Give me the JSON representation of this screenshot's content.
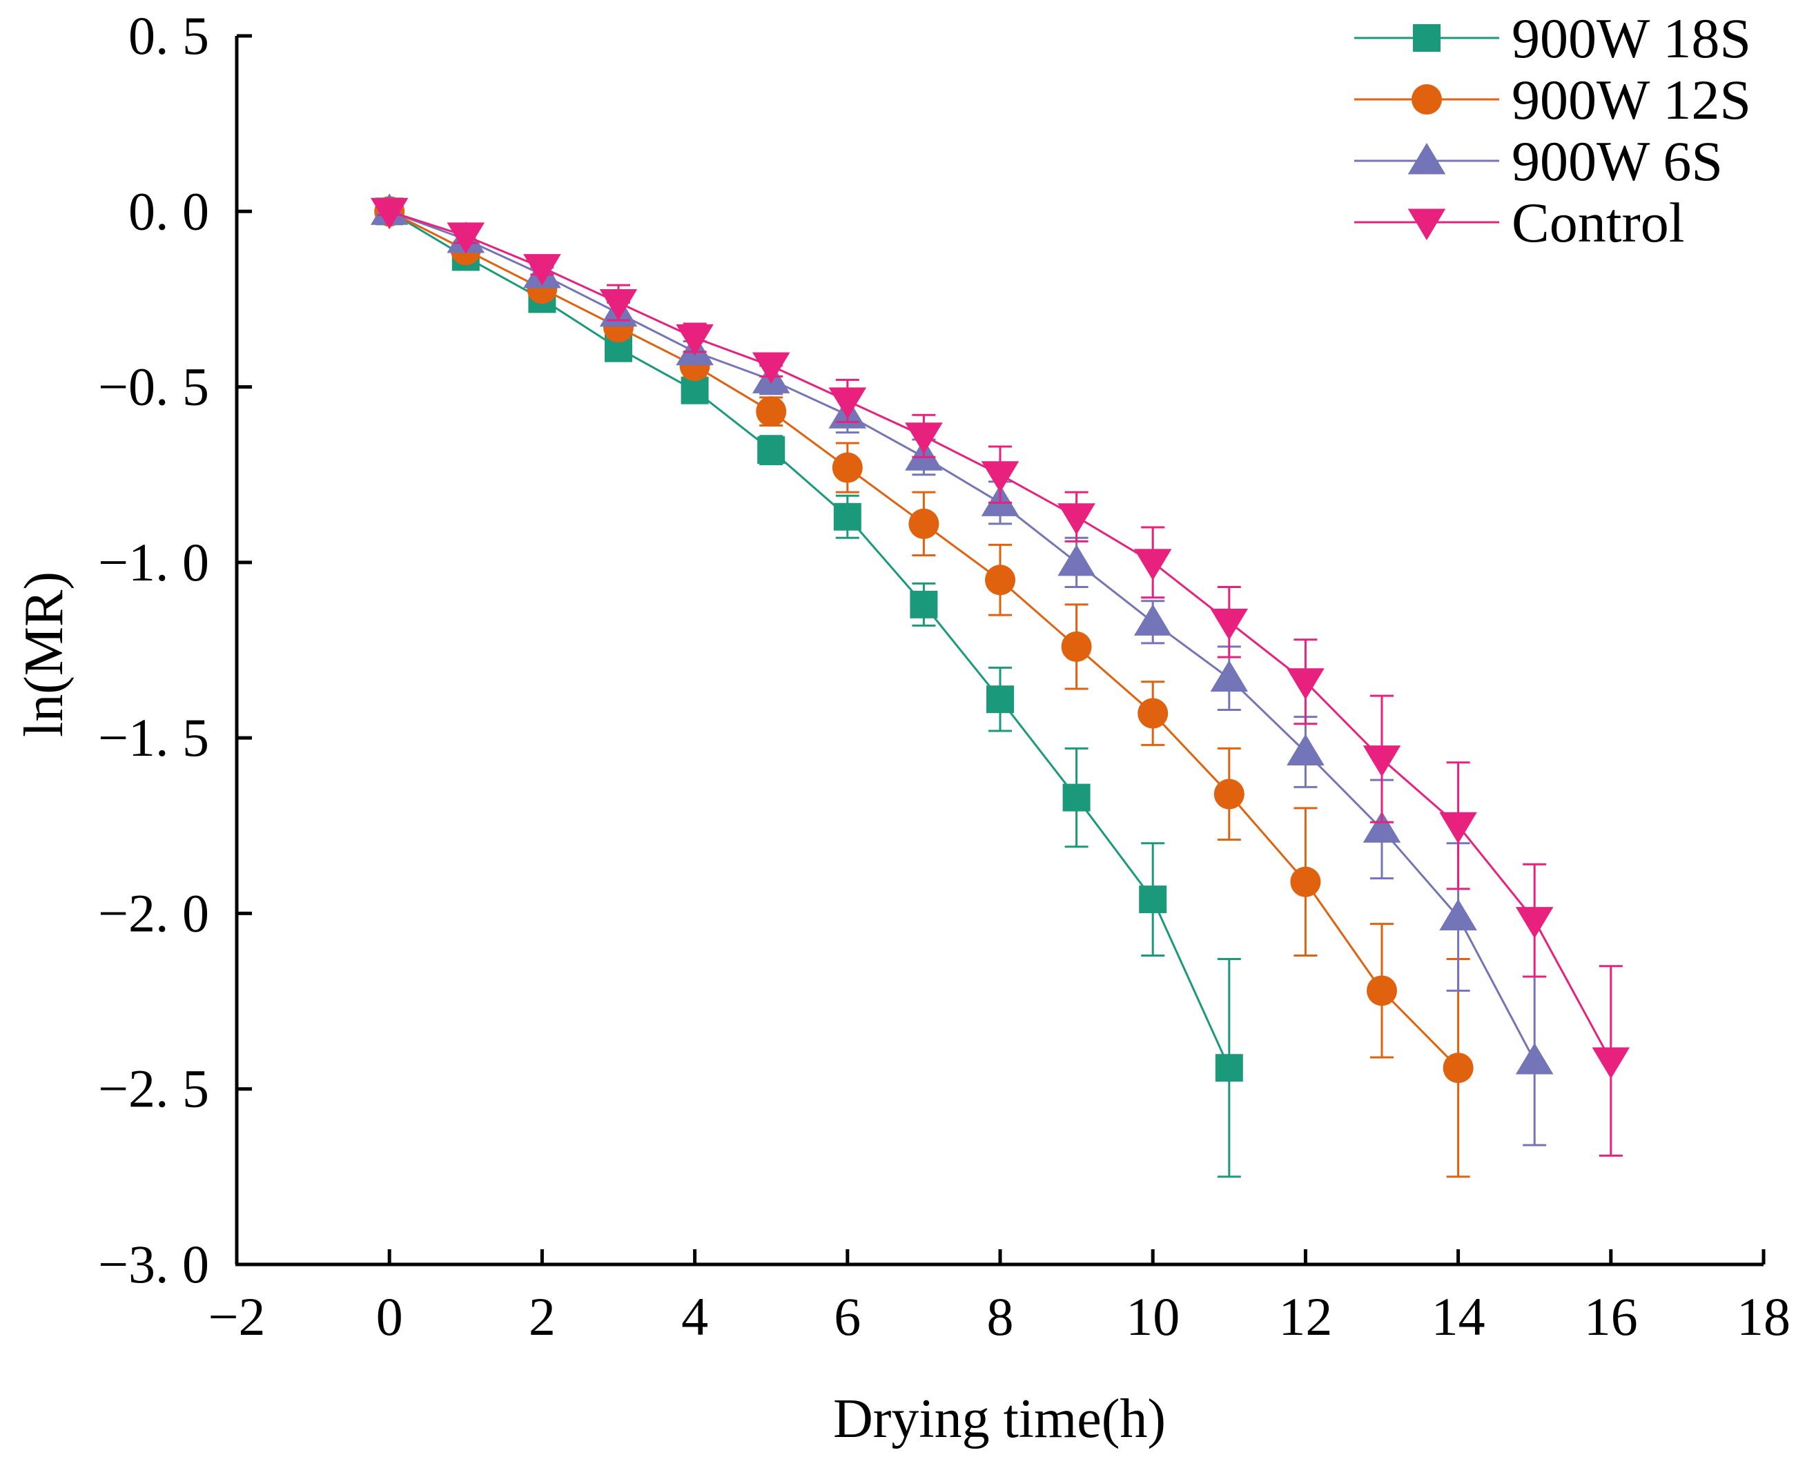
{
  "chart_data": {
    "type": "line",
    "title": "",
    "xlabel": "Drying time(h)",
    "ylabel": "ln(MR)",
    "xlim": [
      -2,
      18
    ],
    "ylim": [
      -3.0,
      0.5
    ],
    "xticks": [
      -2,
      0,
      2,
      4,
      6,
      8,
      10,
      12,
      14,
      16,
      18
    ],
    "xtick_labels": [
      "−2",
      "0",
      "2",
      "4",
      "6",
      "8",
      "10",
      "12",
      "14",
      "16",
      "18"
    ],
    "yticks": [
      0.5,
      0.0,
      -0.5,
      -1.0,
      -1.5,
      -2.0,
      -2.5,
      -3.0
    ],
    "ytick_labels": [
      "0. 5",
      "0. 0",
      "−0. 5",
      "−1. 0",
      "−1. 5",
      "−2. 0",
      "−2. 5",
      "−3. 0"
    ],
    "grid": false,
    "legend_position": "top-right",
    "series": [
      {
        "name": "900W 18S",
        "color": "#1a9a7a",
        "marker": "square",
        "x": [
          0,
          1,
          2,
          3,
          4,
          5,
          6,
          7,
          8,
          9,
          10,
          11
        ],
        "y": [
          0.0,
          -0.13,
          -0.25,
          -0.39,
          -0.51,
          -0.68,
          -0.87,
          -1.12,
          -1.39,
          -1.67,
          -1.96,
          -2.44
        ],
        "err": [
          0.01,
          0.02,
          0.02,
          0.03,
          0.03,
          0.04,
          0.06,
          0.06,
          0.09,
          0.14,
          0.16,
          0.31
        ]
      },
      {
        "name": "900W 12S",
        "color": "#e0620f",
        "marker": "circle",
        "x": [
          0,
          1,
          2,
          3,
          4,
          5,
          6,
          7,
          8,
          9,
          10,
          11,
          12,
          13,
          14
        ],
        "y": [
          0.0,
          -0.11,
          -0.22,
          -0.33,
          -0.44,
          -0.57,
          -0.73,
          -0.89,
          -1.05,
          -1.24,
          -1.43,
          -1.66,
          -1.91,
          -2.22,
          -2.44
        ],
        "err": [
          0.01,
          0.02,
          0.02,
          0.03,
          0.03,
          0.04,
          0.07,
          0.09,
          0.1,
          0.12,
          0.09,
          0.13,
          0.21,
          0.19,
          0.31
        ]
      },
      {
        "name": "900W 6S",
        "color": "#7474b8",
        "marker": "triangle-up",
        "x": [
          0,
          1,
          2,
          3,
          4,
          5,
          6,
          7,
          8,
          9,
          10,
          11,
          12,
          13,
          14,
          15
        ],
        "y": [
          0.0,
          -0.08,
          -0.18,
          -0.29,
          -0.4,
          -0.48,
          -0.58,
          -0.7,
          -0.83,
          -1.0,
          -1.17,
          -1.33,
          -1.54,
          -1.76,
          -2.01,
          -2.42
        ],
        "err": [
          0.01,
          0.02,
          0.02,
          0.03,
          0.03,
          0.04,
          0.05,
          0.05,
          0.06,
          0.07,
          0.06,
          0.09,
          0.1,
          0.14,
          0.21,
          0.24
        ]
      },
      {
        "name": "Control",
        "color": "#e8217e",
        "marker": "triangle-down",
        "x": [
          0,
          1,
          2,
          3,
          4,
          5,
          6,
          7,
          8,
          9,
          10,
          11,
          12,
          13,
          14,
          15,
          16
        ],
        "y": [
          0.0,
          -0.07,
          -0.16,
          -0.26,
          -0.36,
          -0.44,
          -0.54,
          -0.64,
          -0.75,
          -0.87,
          -1.0,
          -1.17,
          -1.34,
          -1.56,
          -1.75,
          -2.02,
          -2.42
        ],
        "err": [
          0.01,
          0.02,
          0.02,
          0.05,
          0.04,
          0.03,
          0.06,
          0.06,
          0.08,
          0.07,
          0.1,
          0.1,
          0.12,
          0.18,
          0.18,
          0.16,
          0.27
        ]
      }
    ]
  }
}
